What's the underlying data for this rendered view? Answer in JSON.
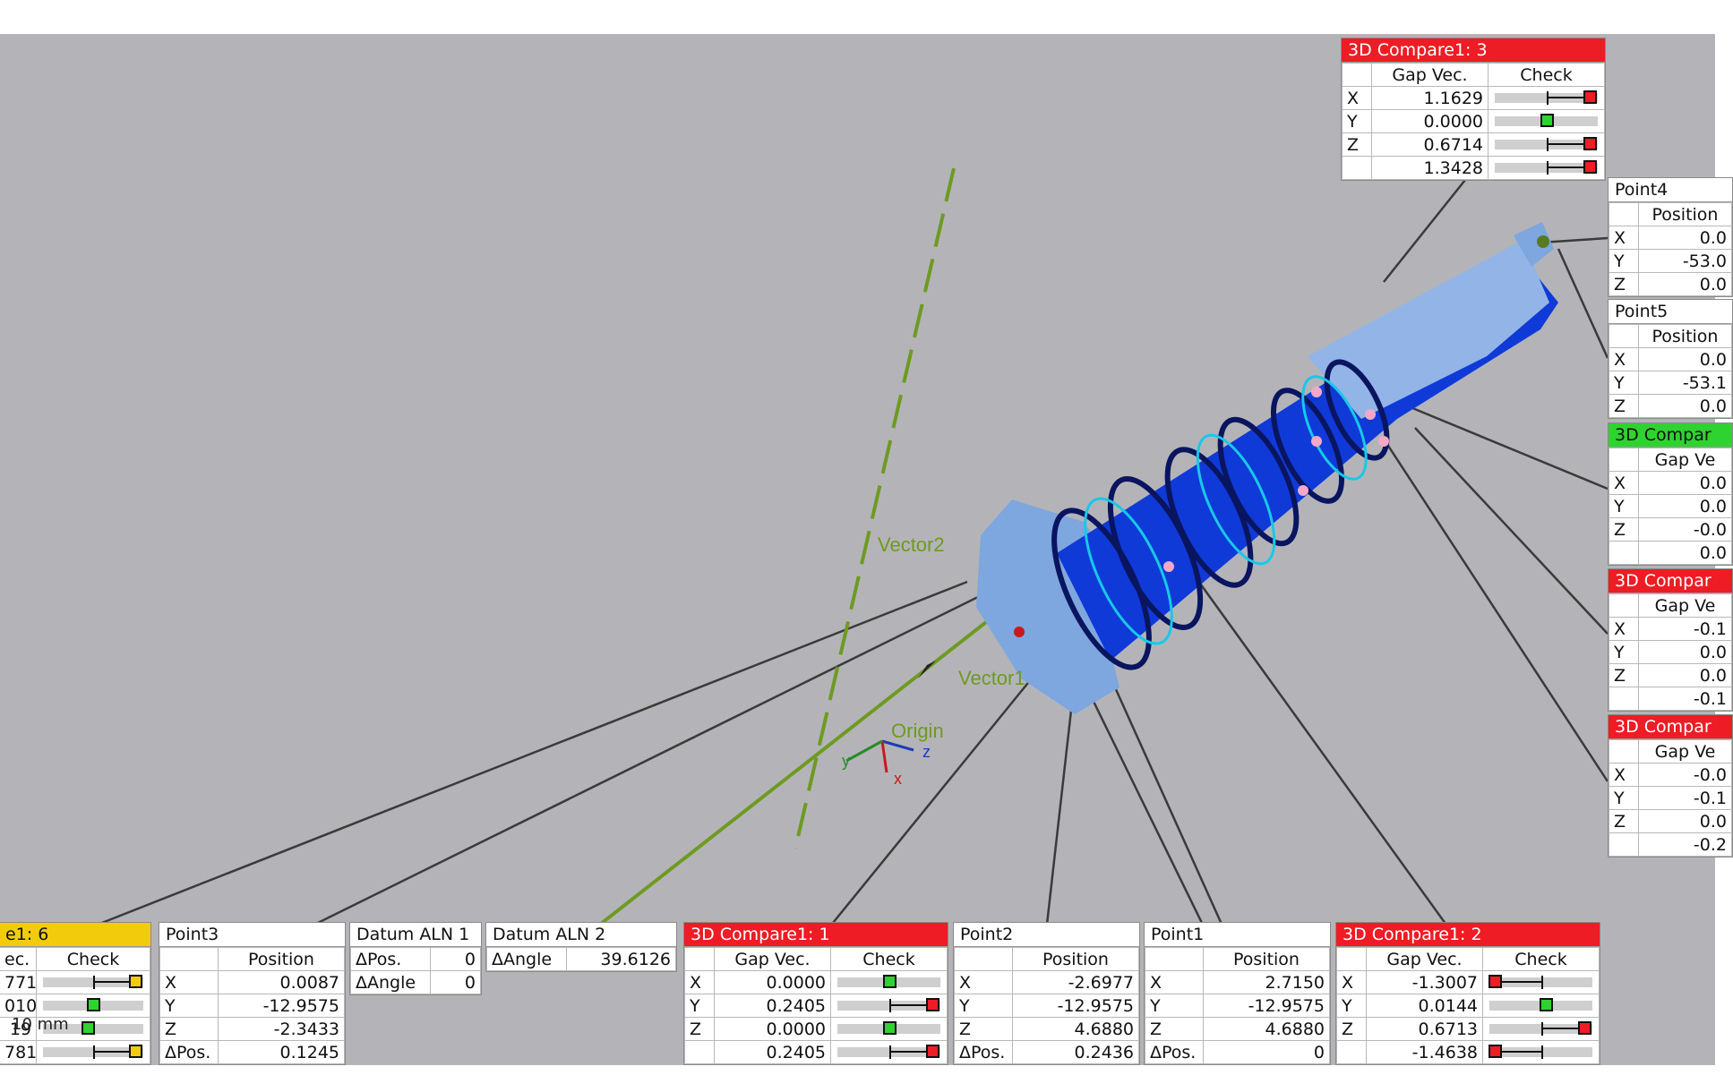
{
  "colors": {
    "fail": "#ee1c24",
    "pass": "#2fd32f",
    "warn": "#f2cc0c",
    "viewport_bg": "#b4b4b8"
  },
  "scene_labels": {
    "vector1": "Vector1",
    "vector2": "Vector2",
    "origin": "Origin",
    "axis_x": "x",
    "axis_y": "y",
    "axis_z": "z"
  },
  "scale_bar": "10 mm",
  "panels": {
    "c3": {
      "title": "3D Compare1: 3",
      "col1": "Gap Vec.",
      "col2": "Check",
      "rows": [
        {
          "axis": "X",
          "value": "1.1629",
          "status": "fail",
          "level": 0.92
        },
        {
          "axis": "Y",
          "value": "0.0000",
          "status": "pass",
          "level": 0.5
        },
        {
          "axis": "Z",
          "value": "0.6714",
          "status": "fail",
          "level": 0.92
        },
        {
          "axis": "",
          "value": "1.3428",
          "status": "fail",
          "level": 0.92
        }
      ]
    },
    "p4": {
      "title": "Point4",
      "col1": "Position",
      "rows": [
        {
          "axis": "X",
          "value": "0.0"
        },
        {
          "axis": "Y",
          "value": "-53.0"
        },
        {
          "axis": "Z",
          "value": "0.0"
        }
      ]
    },
    "p5": {
      "title": "Point5",
      "col1": "Position",
      "rows": [
        {
          "axis": "X",
          "value": "0.0"
        },
        {
          "axis": "Y",
          "value": "-53.1"
        },
        {
          "axis": "Z",
          "value": "0.0"
        }
      ]
    },
    "cg": {
      "title": "3D Compar",
      "col1": "Gap Ve",
      "rows": [
        {
          "axis": "X",
          "value": "0.0"
        },
        {
          "axis": "Y",
          "value": "0.0"
        },
        {
          "axis": "Z",
          "value": "-0.0"
        },
        {
          "axis": "",
          "value": "0.0"
        }
      ]
    },
    "cr1": {
      "title": "3D Compar",
      "col1": "Gap Ve",
      "rows": [
        {
          "axis": "X",
          "value": "-0.1"
        },
        {
          "axis": "Y",
          "value": "0.0"
        },
        {
          "axis": "Z",
          "value": "0.0"
        },
        {
          "axis": "",
          "value": "-0.1"
        }
      ]
    },
    "cr2": {
      "title": "3D Compar",
      "col1": "Gap Ve",
      "rows": [
        {
          "axis": "X",
          "value": "-0.0"
        },
        {
          "axis": "Y",
          "value": "-0.1"
        },
        {
          "axis": "Z",
          "value": "0.0"
        },
        {
          "axis": "",
          "value": "-0.2"
        }
      ]
    },
    "c6": {
      "title": "e1: 6",
      "col1": "ec.",
      "col2": "Check",
      "rows": [
        {
          "axis": "",
          "value": "771",
          "status": "warn",
          "level": 0.92
        },
        {
          "axis": "",
          "value": "010",
          "status": "pass",
          "level": 0.5
        },
        {
          "axis": "",
          "value": "19",
          "status": "pass",
          "level": 0.45
        },
        {
          "axis": "",
          "value": "781",
          "status": "warn",
          "level": 0.92
        }
      ]
    },
    "p3": {
      "title": "Point3",
      "col1": "Position",
      "rows": [
        {
          "axis": "X",
          "value": "0.0087"
        },
        {
          "axis": "Y",
          "value": "-12.9575"
        },
        {
          "axis": "Z",
          "value": "-2.3433"
        },
        {
          "axis": "ΔPos.",
          "value": "0.1245"
        }
      ]
    },
    "d1": {
      "title": "Datum ALN 1",
      "rows": [
        {
          "axis": "ΔPos.",
          "value": "0"
        },
        {
          "axis": "ΔAngle",
          "value": "0"
        }
      ]
    },
    "d2": {
      "title": "Datum ALN 2",
      "rows": [
        {
          "axis": "ΔAngle",
          "value": "39.6126"
        }
      ]
    },
    "c1": {
      "title": "3D Compare1: 1",
      "col1": "Gap Vec.",
      "col2": "Check",
      "rows": [
        {
          "axis": "X",
          "value": "0.0000",
          "status": "pass",
          "level": 0.5
        },
        {
          "axis": "Y",
          "value": "0.2405",
          "status": "fail",
          "level": 0.92
        },
        {
          "axis": "Z",
          "value": "0.0000",
          "status": "pass",
          "level": 0.5
        },
        {
          "axis": "",
          "value": "0.2405",
          "status": "fail",
          "level": 0.92
        }
      ]
    },
    "p2": {
      "title": "Point2",
      "col1": "Position",
      "rows": [
        {
          "axis": "X",
          "value": "-2.6977"
        },
        {
          "axis": "Y",
          "value": "-12.9575"
        },
        {
          "axis": "Z",
          "value": "4.6880"
        },
        {
          "axis": "ΔPos.",
          "value": "0.2436"
        }
      ]
    },
    "p1": {
      "title": "Point1",
      "col1": "Position",
      "rows": [
        {
          "axis": "X",
          "value": "2.7150"
        },
        {
          "axis": "Y",
          "value": "-12.9575"
        },
        {
          "axis": "Z",
          "value": "4.6880"
        },
        {
          "axis": "ΔPos.",
          "value": "0"
        }
      ]
    },
    "c2": {
      "title": "3D Compare1: 2",
      "col1": "Gap Vec.",
      "col2": "Check",
      "rows": [
        {
          "axis": "X",
          "value": "-1.3007",
          "status": "fail",
          "level": 0.05
        },
        {
          "axis": "Y",
          "value": "0.0144",
          "status": "pass",
          "level": 0.55
        },
        {
          "axis": "Z",
          "value": "0.6713",
          "status": "fail",
          "level": 0.92
        },
        {
          "axis": "",
          "value": "-1.4638",
          "status": "fail",
          "level": 0.05
        }
      ]
    }
  }
}
